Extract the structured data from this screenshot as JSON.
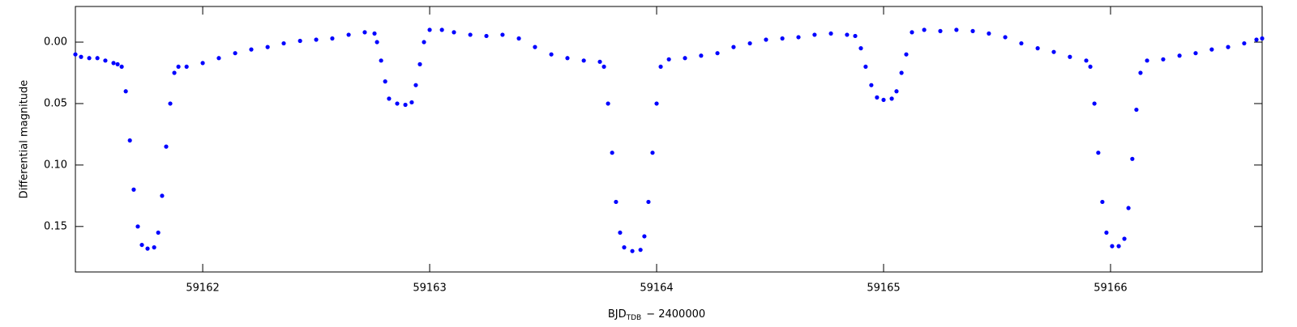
{
  "chart_data": {
    "type": "scatter",
    "x_label": {
      "main": "BJD",
      "subscript": "TDB",
      "rest": "− 2400000"
    },
    "y_label": "Differential magnitude",
    "color": "#0000ff",
    "xlim": [
      59161.439,
      59166.668
    ],
    "ylim": [
      -0.029,
      0.187
    ],
    "y_inverted": true,
    "xticks": [
      59162,
      59163,
      59164,
      59165,
      59166
    ],
    "yticks": [
      {
        "value": 0,
        "label": "0.00"
      },
      {
        "value": 0.05,
        "label": "0.05"
      },
      {
        "value": 0.1,
        "label": "0.10"
      },
      {
        "value": 0.15,
        "label": "0.15"
      }
    ],
    "x": [
      59161.439,
      59161.464,
      59161.5,
      59161.536,
      59161.571,
      59161.607,
      59161.625,
      59161.643,
      59161.661,
      59161.679,
      59161.696,
      59161.714,
      59161.732,
      59161.757,
      59161.786,
      59161.804,
      59161.821,
      59161.839,
      59161.857,
      59161.875,
      59161.893,
      59161.929,
      59162.0,
      59162.071,
      59162.143,
      59162.214,
      59162.286,
      59162.357,
      59162.429,
      59162.5,
      59162.571,
      59162.643,
      59162.714,
      59162.757,
      59162.768,
      59162.786,
      59162.804,
      59162.821,
      59162.857,
      59162.893,
      59162.921,
      59162.939,
      59162.957,
      59162.975,
      59163.0,
      59163.054,
      59163.107,
      59163.179,
      59163.25,
      59163.321,
      59163.393,
      59163.464,
      59163.536,
      59163.607,
      59163.679,
      59163.75,
      59163.768,
      59163.786,
      59163.804,
      59163.821,
      59163.839,
      59163.857,
      59163.893,
      59163.929,
      59163.946,
      59163.964,
      59163.982,
      59164.0,
      59164.018,
      59164.054,
      59164.125,
      59164.196,
      59164.268,
      59164.339,
      59164.411,
      59164.482,
      59164.554,
      59164.625,
      59164.696,
      59164.768,
      59164.839,
      59164.875,
      59164.9,
      59164.921,
      59164.946,
      59164.971,
      59165.0,
      59165.036,
      59165.057,
      59165.079,
      59165.1,
      59165.125,
      59165.179,
      59165.25,
      59165.321,
      59165.393,
      59165.464,
      59165.536,
      59165.607,
      59165.679,
      59165.75,
      59165.821,
      59165.893,
      59165.911,
      59165.929,
      59165.946,
      59165.964,
      59165.982,
      59166.007,
      59166.036,
      59166.061,
      59166.079,
      59166.096,
      59166.114,
      59166.132,
      59166.161,
      59166.232,
      59166.304,
      59166.375,
      59166.446,
      59166.518,
      59166.589,
      59166.643,
      59166.668
    ],
    "y": [
      0.01,
      0.012,
      0.013,
      0.013,
      0.015,
      0.017,
      0.018,
      0.02,
      0.04,
      0.08,
      0.12,
      0.15,
      0.165,
      0.168,
      0.167,
      0.155,
      0.125,
      0.085,
      0.05,
      0.025,
      0.02,
      0.02,
      0.017,
      0.013,
      0.009,
      0.006,
      0.004,
      0.001,
      -0.001,
      -0.002,
      -0.003,
      -0.006,
      -0.008,
      -0.007,
      0.0,
      0.015,
      0.032,
      0.046,
      0.05,
      0.051,
      0.049,
      0.035,
      0.018,
      0.0,
      -0.01,
      -0.01,
      -0.008,
      -0.006,
      -0.005,
      -0.006,
      -0.003,
      0.004,
      0.01,
      0.013,
      0.015,
      0.016,
      0.02,
      0.05,
      0.09,
      0.13,
      0.155,
      0.167,
      0.17,
      0.169,
      0.158,
      0.13,
      0.09,
      0.05,
      0.02,
      0.014,
      0.013,
      0.011,
      0.009,
      0.004,
      0.001,
      -0.002,
      -0.003,
      -0.004,
      -0.006,
      -0.007,
      -0.006,
      -0.005,
      0.005,
      0.02,
      0.035,
      0.045,
      0.047,
      0.046,
      0.04,
      0.025,
      0.01,
      -0.008,
      -0.01,
      -0.009,
      -0.01,
      -0.009,
      -0.007,
      -0.004,
      0.001,
      0.005,
      0.008,
      0.012,
      0.015,
      0.02,
      0.05,
      0.09,
      0.13,
      0.155,
      0.166,
      0.166,
      0.16,
      0.135,
      0.095,
      0.055,
      0.025,
      0.015,
      0.014,
      0.011,
      0.009,
      0.006,
      0.004,
      0.001,
      -0.002,
      -0.003
    ]
  }
}
